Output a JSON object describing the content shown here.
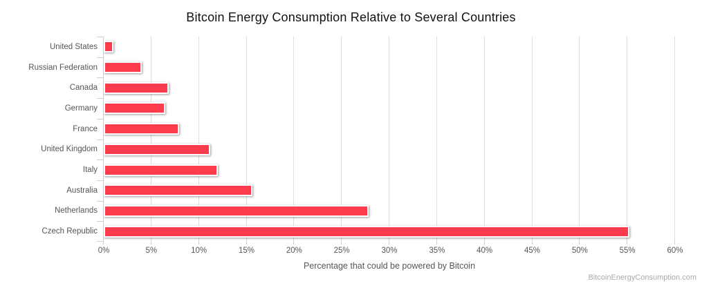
{
  "title": "Bitcoin Energy Consumption Relative to Several Countries",
  "credit": "BitcoinEnergyConsumption.com",
  "chart_data": {
    "type": "bar",
    "orientation": "horizontal",
    "title": "Bitcoin Energy Consumption Relative to Several Countries",
    "categories": [
      "United States",
      "Russian Federation",
      "Canada",
      "Germany",
      "France",
      "United Kingdom",
      "Italy",
      "Australia",
      "Netherlands",
      "Czech Republic"
    ],
    "values": [
      1.0,
      4.0,
      6.8,
      6.5,
      7.9,
      11.2,
      12.0,
      15.6,
      27.8,
      55.2
    ],
    "units": "%",
    "xlabel": "Percentage that could be powered by Bitcoin",
    "ylabel": "",
    "value_axis_range": [
      0,
      60
    ],
    "tick_step": 5,
    "x_tick_labels": [
      "0%",
      "5%",
      "10%",
      "15%",
      "20%",
      "25%",
      "30%",
      "35%",
      "40%",
      "45%",
      "50%",
      "55%",
      "60%"
    ],
    "grid": true,
    "legend": "none",
    "colors": {
      "bar_fill": "#fc3b4d",
      "bar_border": "#ffffff",
      "axis_line": "#c0d0e0",
      "gridline": "#dddddd",
      "labels": "#555555",
      "title": "#111111",
      "credit": "#aaaaaa"
    }
  }
}
